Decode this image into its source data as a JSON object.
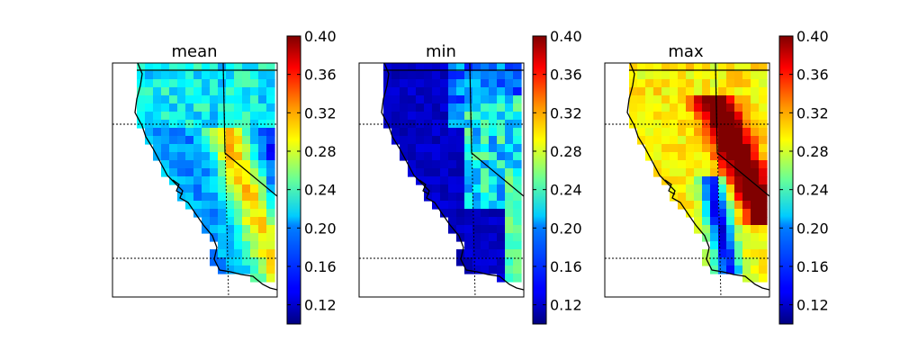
{
  "chart_data": [
    {
      "type": "heatmap",
      "title": "mean",
      "colorbar": {
        "colormap": "jet",
        "range": [
          0.1,
          0.4
        ],
        "ticks": [
          "0.12",
          "0.16",
          "0.20",
          "0.24",
          "0.28",
          "0.32",
          "0.36",
          "0.40"
        ]
      },
      "pattern": "mean",
      "description_values": {
        "coast": 0.15,
        "valley": 0.12,
        "sierra": 0.3,
        "north": 0.22
      }
    },
    {
      "type": "heatmap",
      "title": "min",
      "colorbar": {
        "colormap": "jet",
        "range": [
          0.1,
          0.4
        ],
        "ticks": [
          "0.12",
          "0.16",
          "0.20",
          "0.24",
          "0.28",
          "0.32",
          "0.36",
          "0.40"
        ]
      },
      "pattern": "min",
      "description_values": {
        "coast": 0.12,
        "valley": 0.11,
        "sierra": 0.23,
        "north": 0.14
      }
    },
    {
      "type": "heatmap",
      "title": "max",
      "colorbar": {
        "colormap": "jet",
        "range": [
          0.1,
          0.4
        ],
        "ticks": [
          "0.12",
          "0.16",
          "0.20",
          "0.24",
          "0.28",
          "0.32",
          "0.36",
          "0.40"
        ]
      },
      "pattern": "max",
      "description_values": {
        "coast": 0.27,
        "valley": 0.14,
        "sierra": 0.4,
        "north": 0.3
      }
    }
  ],
  "colors": {
    "border": "#000000",
    "background": "#ffffff"
  }
}
